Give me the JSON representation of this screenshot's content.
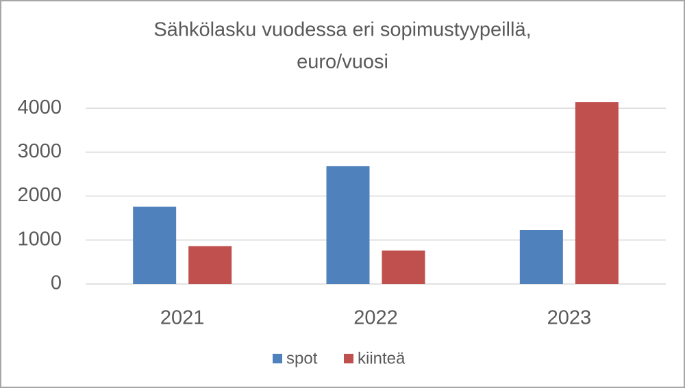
{
  "chart_data": {
    "type": "bar",
    "title": [
      "Sähkölasku vuodessa eri sopimustyypeillä,",
      "euro/vuosi"
    ],
    "categories": [
      "2021",
      "2022",
      "2023"
    ],
    "series": [
      {
        "name": "spot",
        "color": "#4f81bd",
        "values": [
          1760,
          2680,
          1230
        ]
      },
      {
        "name": "kiinteä",
        "color": "#c0504d",
        "values": [
          860,
          760,
          4140
        ]
      }
    ],
    "ylim": [
      0,
      4500
    ],
    "yticks": [
      0,
      1000,
      2000,
      3000,
      4000
    ],
    "grid": true,
    "legend": "bottom"
  }
}
